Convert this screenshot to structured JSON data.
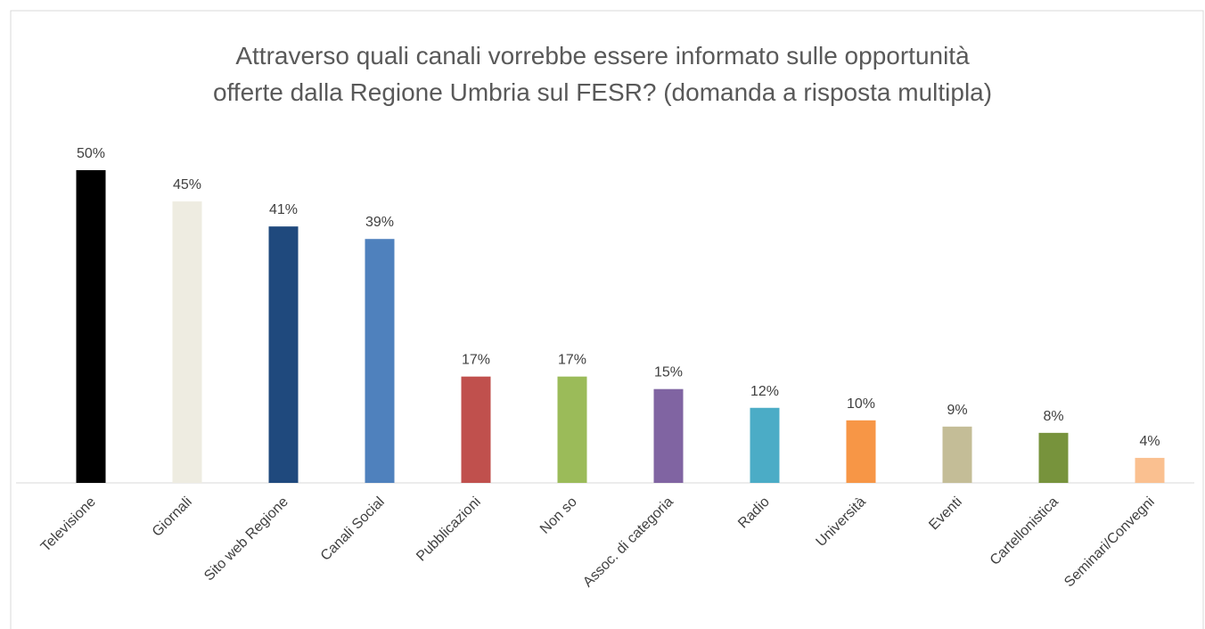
{
  "chart_data": {
    "type": "bar",
    "title": [
      "Attraverso quali canali vorrebbe essere informato sulle opportunità",
      "offerte dalla Regione Umbria sul FESR? (domanda a risposta multipla)"
    ],
    "categories": [
      "Televisione",
      "Giornali",
      "Sito web Regione",
      "Canali Social",
      "Pubblicazioni",
      "Non so",
      "Assoc. di categoria",
      "Radio",
      "Università",
      "Eventi",
      "Cartellonistica",
      "Seminari/Convegni"
    ],
    "values": [
      50,
      45,
      41,
      39,
      17,
      17,
      15,
      12,
      10,
      9,
      8,
      4
    ],
    "value_labels": [
      "50%",
      "45%",
      "41%",
      "39%",
      "17%",
      "17%",
      "15%",
      "12%",
      "10%",
      "9%",
      "8%",
      "4%"
    ],
    "colors": [
      "#000000",
      "#eeece1",
      "#1f497d",
      "#4f81bd",
      "#c0504d",
      "#9bbb59",
      "#8064a2",
      "#4bacc6",
      "#f79646",
      "#c4bd97",
      "#77933c",
      "#fac090"
    ]
  }
}
